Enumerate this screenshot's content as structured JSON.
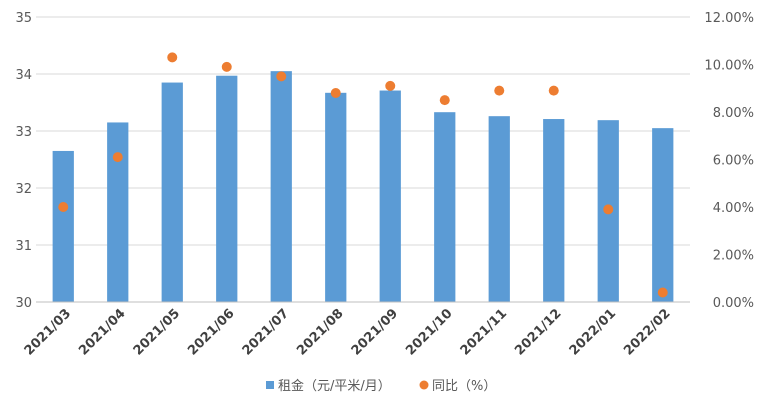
{
  "chart_data": {
    "type": "bar",
    "categories": [
      "2021/03",
      "2021/04",
      "2021/05",
      "2021/06",
      "2021/07",
      "2021/08",
      "2021/09",
      "2021/10",
      "2021/11",
      "2021/12",
      "2022/01",
      "2022/02"
    ],
    "series": [
      {
        "name": "租金（元/平米/月）",
        "type": "bar",
        "axis": "left",
        "color": "#5b9bd5",
        "values": [
          32.65,
          33.15,
          33.85,
          33.97,
          34.05,
          33.67,
          33.71,
          33.33,
          33.26,
          33.21,
          33.19,
          33.05
        ]
      },
      {
        "name": "同比（%）",
        "type": "scatter",
        "axis": "right",
        "color": "#ed7d31",
        "values": [
          4.0,
          6.1,
          10.3,
          9.9,
          9.5,
          8.8,
          9.1,
          8.5,
          8.9,
          8.9,
          3.9,
          0.4
        ]
      }
    ],
    "y_left": {
      "ylim": [
        30,
        35
      ],
      "ticks": [
        "30",
        "31",
        "32",
        "33",
        "34",
        "35"
      ]
    },
    "y_right": {
      "ylim": [
        0,
        12
      ],
      "ticks": [
        "0.00%",
        "2.00%",
        "4.00%",
        "6.00%",
        "8.00%",
        "10.00%",
        "12.00%"
      ]
    },
    "grid": true,
    "legend": "bottom"
  }
}
